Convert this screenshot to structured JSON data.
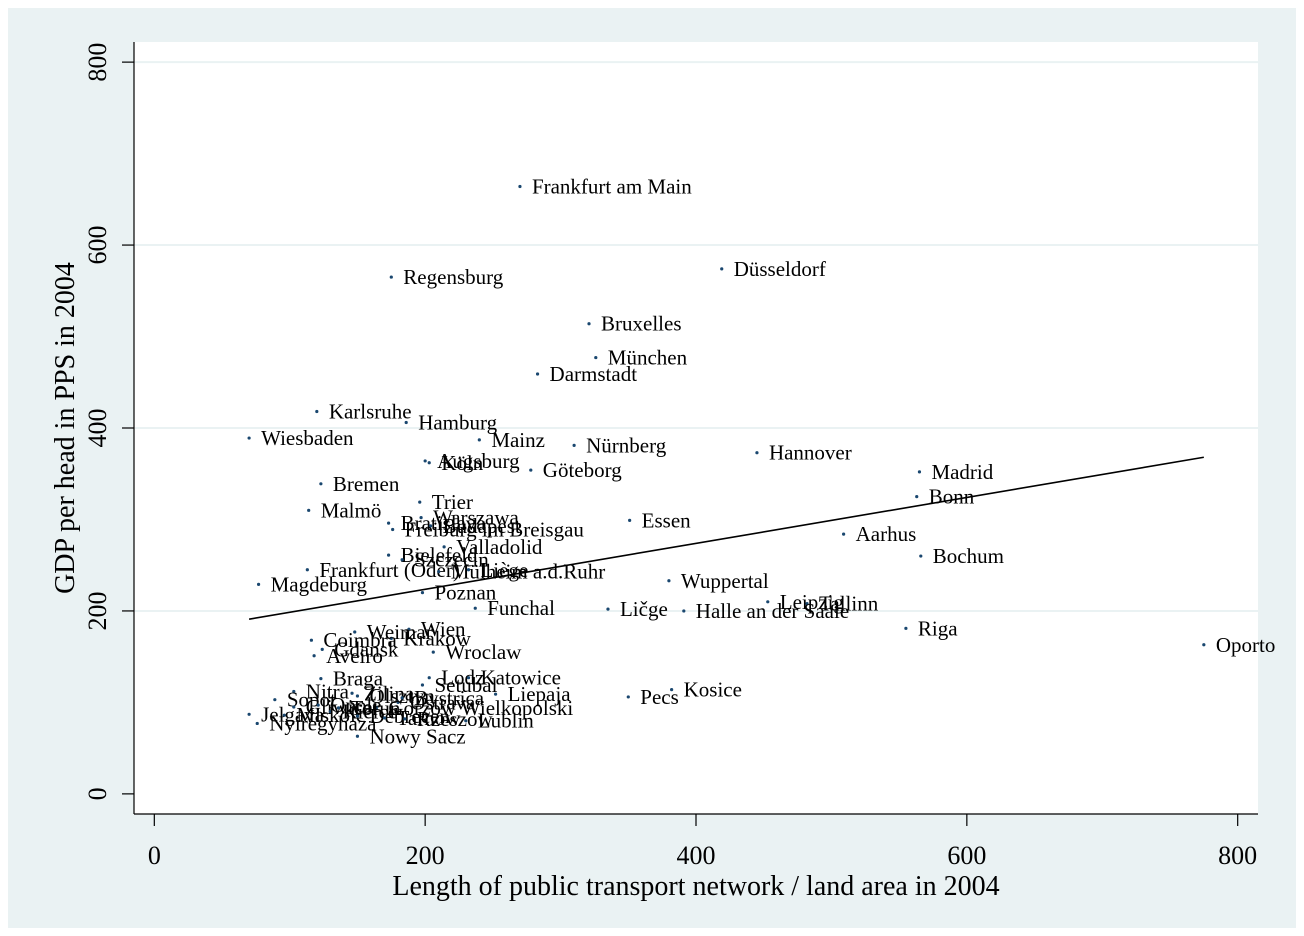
{
  "chart_data": {
    "type": "scatter",
    "title": "",
    "xlabel": "Length of public transport network / land area in 2004",
    "ylabel": "GDP per head in PPS in 2004",
    "xlim": [
      -15,
      815
    ],
    "ylim": [
      -22,
      822
    ],
    "xticks": [
      "0",
      "200",
      "400",
      "600",
      "800"
    ],
    "yticks": [
      "0",
      "200",
      "400",
      "600",
      "800"
    ],
    "grid": "horizontal",
    "legend": "none",
    "colors": {
      "point": "#1a476f",
      "fit_line": "#000000",
      "background": "#eaf2f3",
      "plot_area": "#ffffff",
      "grid": "#eaf2f3"
    },
    "fit_line": {
      "x": [
        70,
        775
      ],
      "y": [
        191,
        368
      ]
    },
    "points": [
      {
        "label": "Frankfurt am Main",
        "x": 270,
        "y": 664
      },
      {
        "label": "Düsseldorf",
        "x": 419,
        "y": 574
      },
      {
        "label": "Regensburg",
        "x": 175,
        "y": 565
      },
      {
        "label": "Bruxelles",
        "x": 321,
        "y": 514
      },
      {
        "label": "München",
        "x": 326,
        "y": 477
      },
      {
        "label": "Darmstadt",
        "x": 283,
        "y": 459
      },
      {
        "label": "Karlsruhe",
        "x": 120,
        "y": 418
      },
      {
        "label": "Hamburg",
        "x": 186,
        "y": 406
      },
      {
        "label": "Wiesbaden",
        "x": 70,
        "y": 389
      },
      {
        "label": "Mainz",
        "x": 240,
        "y": 387
      },
      {
        "label": "Nürnberg",
        "x": 310,
        "y": 381
      },
      {
        "label": "Hannover",
        "x": 445,
        "y": 373
      },
      {
        "label": "Augsburg",
        "x": 200,
        "y": 364
      },
      {
        "label": "Köln",
        "x": 203,
        "y": 362
      },
      {
        "label": "Göteborg",
        "x": 278,
        "y": 354
      },
      {
        "label": "Madrid",
        "x": 565,
        "y": 352
      },
      {
        "label": "Bremen",
        "x": 123,
        "y": 339
      },
      {
        "label": "Bonn",
        "x": 563,
        "y": 325
      },
      {
        "label": "Trier",
        "x": 196,
        "y": 319
      },
      {
        "label": "Malmö",
        "x": 114,
        "y": 310
      },
      {
        "label": "Warszawa",
        "x": 197,
        "y": 302
      },
      {
        "label": "Essen",
        "x": 351,
        "y": 299
      },
      {
        "label": "Bratislava",
        "x": 173,
        "y": 296
      },
      {
        "label": "Budapest",
        "x": 204,
        "y": 293
      },
      {
        "label": "Freiburg im Breisgau",
        "x": 176,
        "y": 289
      },
      {
        "label": "Aarhus",
        "x": 509,
        "y": 284
      },
      {
        "label": "Valladolid",
        "x": 214,
        "y": 270
      },
      {
        "label": "Bochum",
        "x": 566,
        "y": 260
      },
      {
        "label": "Bielefeld",
        "x": 173,
        "y": 261
      },
      {
        "label": "Szczecin",
        "x": 183,
        "y": 256
      },
      {
        "label": "Frankfurt (Oder)",
        "x": 113,
        "y": 245
      },
      {
        "label": "Mülheim a.d.Ruhr",
        "x": 210,
        "y": 243
      },
      {
        "label": "Liège",
        "x": 232,
        "y": 245
      },
      {
        "label": "Wuppertal",
        "x": 380,
        "y": 233
      },
      {
        "label": "Magdeburg",
        "x": 77,
        "y": 229
      },
      {
        "label": "Poznan",
        "x": 198,
        "y": 220
      },
      {
        "label": "Leipzig",
        "x": 453,
        "y": 210
      },
      {
        "label": "Tallinn",
        "x": 482,
        "y": 208
      },
      {
        "label": "Funchal",
        "x": 237,
        "y": 203
      },
      {
        "label": "Ličge",
        "x": 335,
        "y": 202
      },
      {
        "label": "Halle an der Saale",
        "x": 391,
        "y": 200
      },
      {
        "label": "Riga",
        "x": 555,
        "y": 181
      },
      {
        "label": "Wien",
        "x": 188,
        "y": 180
      },
      {
        "label": "Weimar",
        "x": 148,
        "y": 177
      },
      {
        "label": "Krakow",
        "x": 175,
        "y": 170
      },
      {
        "label": "Coimbra",
        "x": 116,
        "y": 168
      },
      {
        "label": "Oporto",
        "x": 775,
        "y": 163
      },
      {
        "label": "Gdansk",
        "x": 124,
        "y": 158
      },
      {
        "label": "Wroclaw",
        "x": 206,
        "y": 155
      },
      {
        "label": "Aveiro",
        "x": 118,
        "y": 151
      },
      {
        "label": "Lodz",
        "x": 203,
        "y": 127
      },
      {
        "label": "Katowice",
        "x": 232,
        "y": 127
      },
      {
        "label": "Braga",
        "x": 123,
        "y": 126
      },
      {
        "label": "Setubal",
        "x": 198,
        "y": 119
      },
      {
        "label": "Kosice",
        "x": 382,
        "y": 114
      },
      {
        "label": "Nitra",
        "x": 103,
        "y": 112
      },
      {
        "label": "Zilina",
        "x": 146,
        "y": 110
      },
      {
        "label": "Liepaja",
        "x": 252,
        "y": 109
      },
      {
        "label": "Pecs",
        "x": 350,
        "y": 106
      },
      {
        "label": "Olsztyn",
        "x": 150,
        "y": 107
      },
      {
        "label": "Bystrica",
        "x": 183,
        "y": 105
      },
      {
        "label": "Sopot",
        "x": 89,
        "y": 103
      },
      {
        "label": "Ostrava",
        "x": 180,
        "y": 100
      },
      {
        "label": "Opole",
        "x": 121,
        "y": 97
      },
      {
        "label": "Gliwice",
        "x": 103,
        "y": 95
      },
      {
        "label": "Torun",
        "x": 136,
        "y": 94
      },
      {
        "label": "Gorzow Wielkopolski",
        "x": 164,
        "y": 94
      },
      {
        "label": "Kielce",
        "x": 130,
        "y": 90
      },
      {
        "label": "Miskolc",
        "x": 96,
        "y": 86
      },
      {
        "label": "Debrecen",
        "x": 150,
        "y": 85
      },
      {
        "label": "Jelgava",
        "x": 70,
        "y": 87
      },
      {
        "label": "Tarnow",
        "x": 170,
        "y": 83
      },
      {
        "label": "Rzeszow",
        "x": 185,
        "y": 82
      },
      {
        "label": "Lublin",
        "x": 230,
        "y": 80
      },
      {
        "label": "Nyiregyhaza",
        "x": 76,
        "y": 77
      },
      {
        "label": "Nowy Sacz",
        "x": 150,
        "y": 63
      }
    ]
  }
}
